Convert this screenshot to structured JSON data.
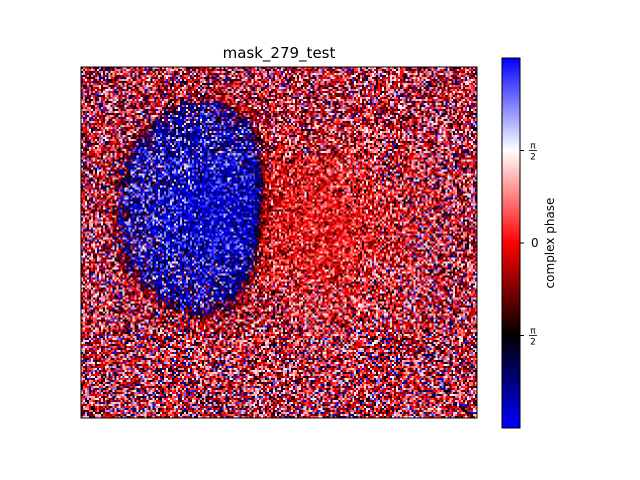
{
  "chart_data": {
    "type": "heatmap",
    "title": "mask_279_test",
    "xlabel": "",
    "ylabel": "",
    "xticks": [],
    "yticks": [],
    "grid": false,
    "colormap": {
      "name": "blue-black-red-white-blue (cyclic phase)",
      "stops": [
        "#0000ff",
        "#000000",
        "#ff0000",
        "#ffffff",
        "#0000ff"
      ]
    },
    "colorbar": {
      "label": "complex phase",
      "range": [
        -3.14159,
        3.14159
      ],
      "ticks": [
        {
          "value": -1.5708,
          "label_num": "π",
          "label_den": "2",
          "label": "−π/2 (shown without sign)"
        },
        {
          "value": 0,
          "label_num": "0",
          "label_den": "",
          "label": "0"
        },
        {
          "value": 1.5708,
          "label_num": "π",
          "label_den": "2",
          "label": "π/2"
        }
      ]
    },
    "grid_size": [
      200,
      175
    ],
    "regions": [
      {
        "name": "blue-region",
        "phase": -3.0,
        "center": [
          0.32,
          0.4
        ],
        "spread": [
          0.12,
          0.16
        ]
      },
      {
        "name": "red-region",
        "phase": 0.05,
        "center": [
          0.63,
          0.44
        ],
        "spread": [
          0.13,
          0.17
        ]
      }
    ],
    "background_phase": 0.0,
    "noise_level": 1.35
  }
}
